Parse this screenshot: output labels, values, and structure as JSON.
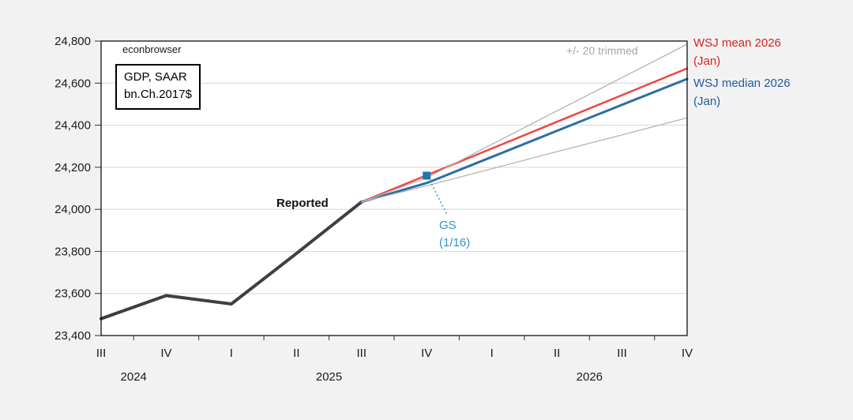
{
  "watermark": "econbrowser",
  "unit_box": {
    "line1": "GDP, SAAR",
    "line2": "bn.Ch.2017$"
  },
  "annotations": {
    "reported": "Reported",
    "trimmed": "+/- 20 trimmed",
    "gs_line1": "GS",
    "gs_line2": "(1/16)",
    "wsj_mean_line1": "WSJ mean 2026",
    "wsj_mean_line2": "(Jan)",
    "wsj_median_line1": "WSJ median 2026",
    "wsj_median_line2": "(Jan)"
  },
  "colors": {
    "background": "#f2f2f2",
    "plot_background": "#ffffff",
    "plot_border": "#000000",
    "gridline": "#d6d6d6",
    "tick": "#333333",
    "axis_text": "#1a1a1a",
    "reported_line": "#3f3f3f",
    "mean_line": "#f0453e",
    "median_line": "#2e6da4",
    "trimmed_line": "#b3b3b3",
    "trimmed_text": "#a6a6a6",
    "gs_marker": "#1f77b4",
    "gs_text": "#2e96c8",
    "mean_text": "#d62320",
    "median_text": "#1e5c9f"
  },
  "chart_data": {
    "type": "line",
    "title": "",
    "xlabel": "",
    "ylabel": "GDP, SAAR bn.Ch.2017$",
    "ylim": [
      23400,
      24800
    ],
    "ytick_step": 200,
    "grid": "horizontal",
    "x_labels": [
      "III",
      "IV",
      "I",
      "II",
      "III",
      "IV",
      "I",
      "II",
      "III",
      "IV"
    ],
    "year_labels": [
      {
        "label": "2024",
        "start": 0,
        "end": 1
      },
      {
        "label": "2025",
        "start": 2,
        "end": 5
      },
      {
        "label": "2026",
        "start": 6,
        "end": 9
      }
    ],
    "series": [
      {
        "name": "Reported",
        "color": "#3f3f3f",
        "width": 4,
        "start_index": 0,
        "values": [
          23480,
          23590,
          23550,
          23790,
          24035
        ]
      },
      {
        "name": "WSJ mean 2026 (Jan)",
        "color": "#f0453e",
        "width": 2.5,
        "start_index": 4,
        "values": [
          24035,
          24162,
          24289,
          24416,
          24543,
          24670
        ]
      },
      {
        "name": "WSJ median 2026 (Jan)",
        "color": "#2e6da4",
        "width": 3,
        "start_index": 4,
        "values": [
          24035,
          24125,
          24249,
          24373,
          24497,
          24620
        ]
      },
      {
        "name": "+20 trimmed",
        "color": "#b3b3b3",
        "width": 1.3,
        "start_index": 4,
        "values": [
          24035,
          24150,
          24309,
          24468,
          24626,
          24785
        ]
      },
      {
        "name": "-20 trimmed",
        "color": "#b3b3b3",
        "width": 1.3,
        "start_index": 4,
        "values": [
          24035,
          24112,
          24193,
          24274,
          24354,
          24435
        ]
      }
    ],
    "point": {
      "name": "GS (1/16)",
      "x_index": 5,
      "value": 24160,
      "color": "#1f77b4"
    },
    "legend_position": "right-outside"
  }
}
